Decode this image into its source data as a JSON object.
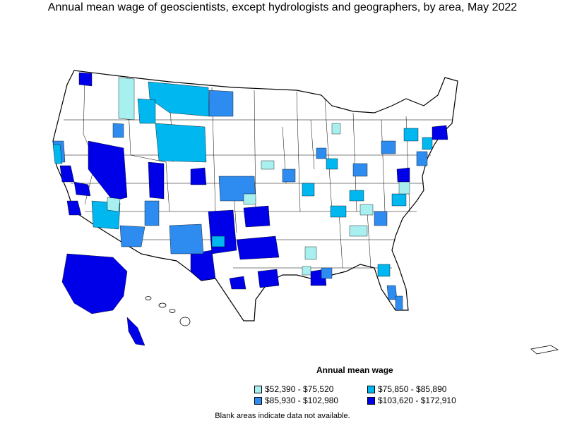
{
  "title": "Annual mean wage of geoscientists, except hydrologists and geographers, by area, May 2022",
  "legend": {
    "title": "Annual mean wage",
    "items": [
      {
        "label": "$52,390 - $75,520",
        "color": "#a8f0f0"
      },
      {
        "label": "$75,850 - $85,890",
        "color": "#00b7f0"
      },
      {
        "label": "$85,930 - $102,980",
        "color": "#2e8cf0"
      },
      {
        "label": "$103,620 - $172,910",
        "color": "#0000e8"
      }
    ]
  },
  "note": "Blank areas indicate data not available.",
  "colors": {
    "tier1": "#a8f0f0",
    "tier2": "#00b7f0",
    "tier3": "#2e8cf0",
    "tier4": "#0000e8",
    "blank": "#ffffff",
    "border": "#000000"
  }
}
